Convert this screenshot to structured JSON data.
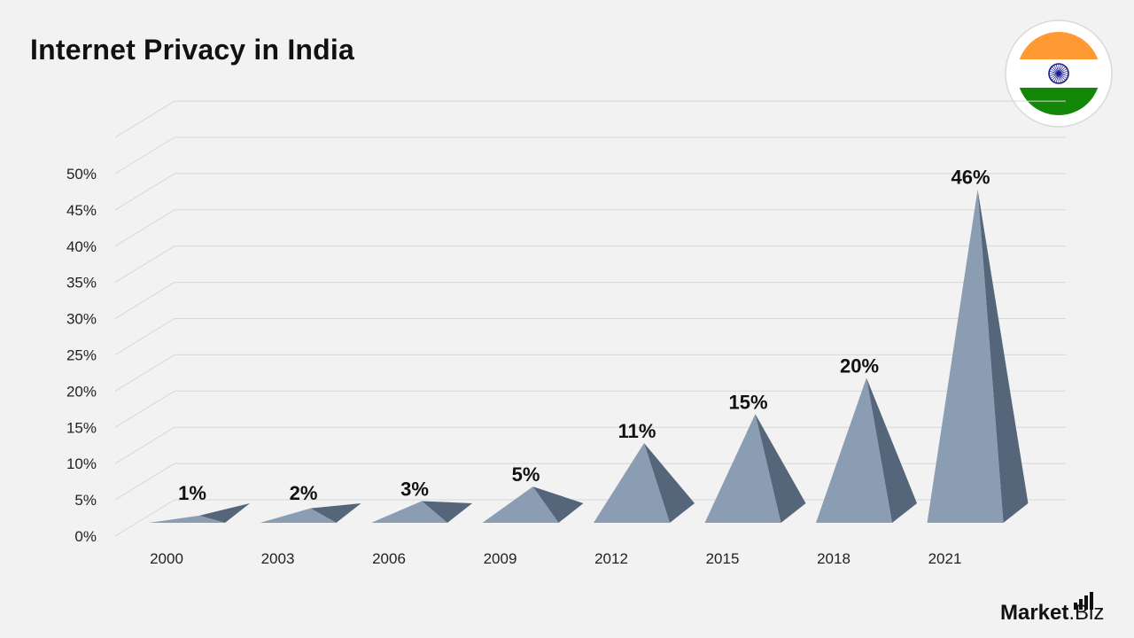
{
  "title": "Internet Privacy in India",
  "brand": {
    "main": "Market",
    "suffix": ".Biz"
  },
  "flag": {
    "saffron": "#FF9933",
    "white": "#FFFFFF",
    "green": "#138808",
    "chakra": "#1b1b8f"
  },
  "colors": {
    "face_light": "#8a9db3",
    "face_side": "#55657a",
    "grid": "#d6d6d6",
    "text": "#111111"
  },
  "chart_data": {
    "type": "bar",
    "style": "3d-pyramid",
    "categories": [
      "2000",
      "2003",
      "2006",
      "2009",
      "2012",
      "2015",
      "2018",
      "2021"
    ],
    "values": [
      1,
      2,
      3,
      5,
      11,
      15,
      20,
      46
    ],
    "data_labels": [
      "1%",
      "2%",
      "3%",
      "5%",
      "11%",
      "15%",
      "20%",
      "46%"
    ],
    "title": "Internet Privacy in India",
    "xlabel": "",
    "ylabel": "",
    "ylim": [
      0,
      50
    ],
    "yticks": [
      "0%",
      "5%",
      "10%",
      "15%",
      "20%",
      "25%",
      "30%",
      "35%",
      "40%",
      "45%",
      "50%"
    ],
    "grid": true,
    "legend": "none"
  }
}
